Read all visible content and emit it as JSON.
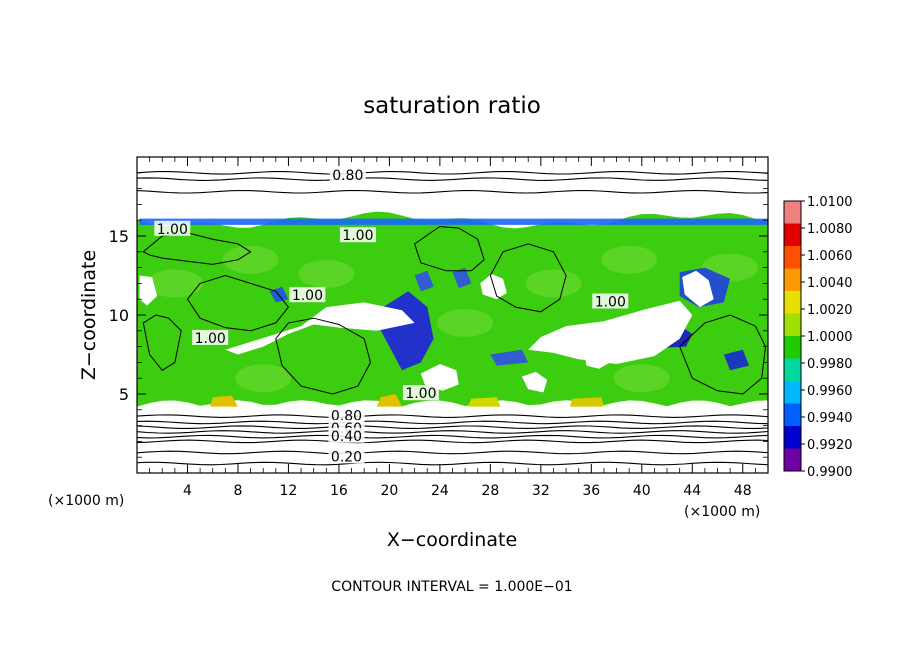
{
  "chart_data": {
    "type": "heatmap",
    "title": "saturation ratio",
    "xlabel": "X−coordinate",
    "ylabel": "Z−coordinate",
    "x_unit_label": "(×1000 m)",
    "y_unit_label": "(×1000 m)",
    "footer": "CONTOUR INTERVAL = 1.000E−01",
    "xlim": [
      0,
      50
    ],
    "ylim": [
      0,
      20
    ],
    "x_ticks": [
      4,
      8,
      12,
      16,
      20,
      24,
      28,
      32,
      36,
      40,
      44,
      48
    ],
    "x_tick_labels": [
      "4",
      "8",
      "12",
      "16",
      "20",
      "24",
      "28",
      "32",
      "36",
      "40",
      "44",
      "48"
    ],
    "y_ticks": [
      5,
      10,
      15
    ],
    "y_tick_labels": [
      "5",
      "10",
      "15"
    ],
    "colorbar": {
      "labels": [
        "1.0100",
        "1.0080",
        "1.0060",
        "1.0040",
        "1.0020",
        "1.0000",
        "0.9980",
        "0.9960",
        "0.9940",
        "0.9920",
        "0.9900"
      ],
      "colors": [
        "#f08080",
        "#e00000",
        "#ff5000",
        "#ff9900",
        "#e8e000",
        "#a0e000",
        "#20cc00",
        "#00d8a0",
        "#00b8ff",
        "#0060ff",
        "#0000d0",
        "#7000a0"
      ]
    },
    "contour_labels": [
      {
        "text": "0.80",
        "x": 16.7,
        "z": 18.6
      },
      {
        "text": "1.00",
        "x": 2.8,
        "z": 15.2
      },
      {
        "text": "1.00",
        "x": 17.5,
        "z": 14.8
      },
      {
        "text": "1.00",
        "x": 13.5,
        "z": 11.0
      },
      {
        "text": "1.00",
        "x": 5.8,
        "z": 8.3
      },
      {
        "text": "1.00",
        "x": 37.5,
        "z": 10.6
      },
      {
        "text": "1.00",
        "x": 22.5,
        "z": 4.8
      },
      {
        "text": "0.80",
        "x": 16.6,
        "z": 3.4
      },
      {
        "text": "0.60",
        "x": 16.6,
        "z": 2.6
      },
      {
        "text": "0.40",
        "x": 16.6,
        "z": 2.1
      },
      {
        "text": "0.20",
        "x": 16.6,
        "z": 0.8
      }
    ],
    "levels_above": [
      19.0,
      18.6,
      17.8
    ],
    "levels_below": [
      3.6,
      3.2,
      2.9,
      2.6,
      2.3,
      2.0,
      1.3,
      0.6
    ],
    "cloud_top_z": 16.0,
    "cloud_base_z": 4.2,
    "dry_patches": [
      {
        "x": [
          13,
          15,
          18,
          21,
          22,
          19,
          16,
          14,
          12,
          10,
          8,
          7
        ],
        "z": [
          9.3,
          10.5,
          10.8,
          10.3,
          9.5,
          9.0,
          9.2,
          9.4,
          8.8,
          8.0,
          7.5,
          7.8
        ]
      },
      {
        "x": [
          32,
          34,
          37,
          40,
          43,
          44,
          43,
          41,
          38,
          35,
          33,
          31
        ],
        "z": [
          8.6,
          9.3,
          9.6,
          10.3,
          10.9,
          10.0,
          8.5,
          7.4,
          6.9,
          7.2,
          7.6,
          7.8
        ]
      },
      {
        "x": [
          27.2,
          28.1,
          29.0,
          29.3,
          28.5,
          27.4
        ],
        "z": [
          12.0,
          12.6,
          12.3,
          11.4,
          11.0,
          11.3
        ]
      },
      {
        "x": [
          43.2,
          44.3,
          45.3,
          45.7,
          44.6,
          43.4
        ],
        "z": [
          12.4,
          12.8,
          12.2,
          11.0,
          10.5,
          11.3
        ]
      },
      {
        "x": [
          0.2,
          1.2,
          1.6,
          0.8,
          0.2
        ],
        "z": [
          12.5,
          12.4,
          11.2,
          10.6,
          11.0
        ]
      },
      {
        "x": [
          22.5,
          24.0,
          25.3,
          25.5,
          24.2,
          22.8
        ],
        "z": [
          6.3,
          6.9,
          6.5,
          5.6,
          5.2,
          5.6
        ]
      },
      {
        "x": [
          30.5,
          31.6,
          32.5,
          32.2,
          31.0
        ],
        "z": [
          6.1,
          6.4,
          5.9,
          5.1,
          5.3
        ]
      },
      {
        "x": [
          35.5,
          36.8,
          37.5,
          36.6,
          35.6
        ],
        "z": [
          7.4,
          7.8,
          7.0,
          6.6,
          6.8
        ]
      }
    ],
    "subsat_patches": [
      {
        "x": [
          19.5,
          21.5,
          23.0,
          23.5,
          22.5,
          21.0,
          20.0,
          19.0
        ],
        "z": [
          10.5,
          11.5,
          10.5,
          8.5,
          7.0,
          6.5,
          8.0,
          9.5
        ],
        "color": "#2020e0"
      },
      {
        "x": [
          22.0,
          23.0,
          23.5,
          22.5
        ],
        "z": [
          12.5,
          12.8,
          11.8,
          11.5
        ],
        "color": "#3050e8"
      },
      {
        "x": [
          25.0,
          26.0,
          26.5,
          25.5
        ],
        "z": [
          12.7,
          13.0,
          12.0,
          11.7
        ],
        "color": "#3050e8"
      },
      {
        "x": [
          38.0,
          40.0,
          42.5,
          44.0,
          43.5,
          41.0,
          38.5
        ],
        "z": [
          8.8,
          9.5,
          9.6,
          8.8,
          8.0,
          7.9,
          8.2
        ],
        "color": "#1818c8"
      },
      {
        "x": [
          43.0,
          45.0,
          47.0,
          46.5,
          44.5,
          43.0
        ],
        "z": [
          12.7,
          13.0,
          12.3,
          10.8,
          10.5,
          11.2
        ],
        "color": "#2040e0"
      },
      {
        "x": [
          10.5,
          11.5,
          12.0,
          11.0
        ],
        "z": [
          11.5,
          11.8,
          11.0,
          10.8
        ],
        "color": "#2050e8"
      },
      {
        "x": [
          0.2,
          50.0,
          50.0,
          0.2
        ],
        "z": [
          16.1,
          16.1,
          15.7,
          15.7
        ],
        "color": "#1a66ff"
      },
      {
        "x": [
          28.0,
          30.5,
          31.0,
          28.5
        ],
        "z": [
          7.5,
          7.8,
          7.0,
          6.8
        ],
        "color": "#3050e8"
      },
      {
        "x": [
          46.5,
          48.0,
          48.5,
          47.0
        ],
        "z": [
          7.5,
          7.8,
          6.8,
          6.5
        ],
        "color": "#1828d0"
      }
    ],
    "supersat_patches": [
      {
        "x": [
          6.0,
          7.5,
          8.0,
          5.8
        ],
        "z": [
          4.8,
          4.9,
          4.2,
          4.2
        ],
        "color": "#e0c000"
      },
      {
        "x": [
          19.3,
          20.5,
          21.0,
          19.0
        ],
        "z": [
          4.8,
          5.0,
          4.2,
          4.2
        ],
        "color": "#e0c000"
      },
      {
        "x": [
          26.5,
          28.5,
          28.8,
          26.2
        ],
        "z": [
          4.7,
          4.8,
          4.2,
          4.2
        ],
        "color": "#d0d800"
      },
      {
        "x": [
          34.5,
          36.8,
          37.0,
          34.3
        ],
        "z": [
          4.7,
          4.8,
          4.2,
          4.2
        ],
        "color": "#d8c800"
      }
    ],
    "cloud_contours": [
      {
        "x": [
          0.5,
          2,
          4,
          6,
          8,
          9,
          8,
          6,
          4,
          2,
          1,
          0.5
        ],
        "z": [
          14.0,
          15.0,
          15.2,
          14.8,
          14.5,
          14.0,
          13.5,
          13.2,
          13.4,
          13.6,
          13.8,
          14.0
        ]
      },
      {
        "x": [
          4,
          5,
          7,
          9,
          11,
          12,
          11,
          9,
          7,
          5,
          4
        ],
        "z": [
          11.0,
          12.0,
          12.5,
          12.0,
          11.5,
          10.5,
          9.5,
          9.0,
          9.2,
          9.8,
          11.0
        ]
      },
      {
        "x": [
          11,
          12,
          14,
          16,
          18,
          18.5,
          17.5,
          15.5,
          13,
          11.5,
          11
        ],
        "z": [
          8.5,
          9.5,
          9.8,
          9.4,
          8.5,
          7.0,
          5.5,
          5.0,
          5.5,
          6.8,
          8.5
        ]
      },
      {
        "x": [
          28,
          29,
          31,
          33,
          34,
          33.5,
          32,
          30,
          28.5,
          28
        ],
        "z": [
          12.5,
          14.0,
          14.5,
          14.0,
          12.5,
          11.0,
          10.2,
          10.5,
          11.2,
          12.5
        ]
      },
      {
        "x": [
          43,
          45,
          47,
          49,
          49.8,
          49.5,
          48,
          46,
          44,
          43
        ],
        "z": [
          8.0,
          9.5,
          10.0,
          9.3,
          8.0,
          6.0,
          5.0,
          5.2,
          6.0,
          8.0
        ]
      },
      {
        "x": [
          22,
          24,
          25.5,
          27,
          27.5,
          26.5,
          24.5,
          22.5,
          22
        ],
        "z": [
          14.5,
          15.6,
          15.5,
          14.8,
          13.5,
          12.8,
          12.8,
          13.3,
          14.5
        ]
      },
      {
        "x": [
          0.5,
          1.5,
          2.5,
          3.5,
          3,
          2,
          1,
          0.5
        ],
        "z": [
          9.5,
          10.0,
          9.8,
          9.0,
          7.0,
          6.5,
          7.5,
          9.5
        ]
      }
    ]
  }
}
